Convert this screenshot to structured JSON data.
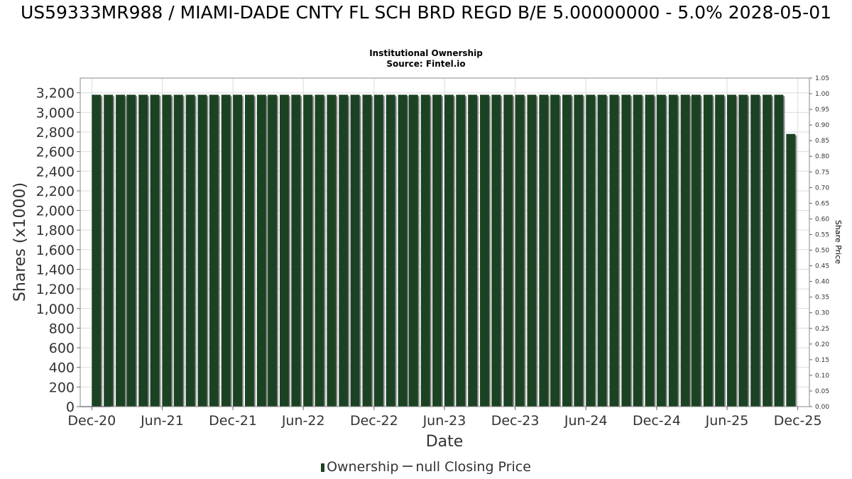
{
  "title": "US59333MR988 / MIAMI-DADE CNTY FL SCH BRD REGD B/E 5.00000000 - 5.0% 2028-05-01",
  "subtitle_lines": [
    "Institutional Ownership",
    "Source: Fintel.io"
  ],
  "colors": {
    "bar": "#1b4323",
    "bar_shadow": "#8a8a8a",
    "grid": "#dcdcdc",
    "frame": "#888888"
  },
  "chart_data": {
    "type": "bar",
    "title": "US59333MR988 / MIAMI-DADE CNTY FL SCH BRD REGD B/E 5.00000000 - 5.0% 2028-05-01",
    "xlabel": "Date",
    "ylabel": "Shares (x1000)",
    "y2label": "Share Price",
    "x_start": "2020-11-01",
    "x_end": "2025-12-31",
    "x_ticks": [
      "Dec-20",
      "Jun-21",
      "Dec-21",
      "Jun-22",
      "Dec-22",
      "Jun-23",
      "Dec-23",
      "Jun-24",
      "Dec-24",
      "Jun-25",
      "Dec-25"
    ],
    "x_tick_dates": [
      "2020-12-01",
      "2021-06-01",
      "2021-12-01",
      "2022-06-01",
      "2022-12-01",
      "2023-06-01",
      "2023-12-01",
      "2024-06-01",
      "2024-12-01",
      "2025-06-01",
      "2025-12-01"
    ],
    "ylim": [
      0,
      3350
    ],
    "y_ticks": [
      0,
      200,
      400,
      600,
      800,
      1000,
      1200,
      1400,
      1600,
      1800,
      2000,
      2200,
      2400,
      2600,
      2800,
      3000,
      3200
    ],
    "y_tick_labels": [
      "0",
      "200",
      "400",
      "600",
      "800",
      "1,000",
      "1,200",
      "1,400",
      "1,600",
      "1,800",
      "2,000",
      "2,200",
      "2,400",
      "2,600",
      "2,800",
      "3,000",
      "3,200"
    ],
    "y2lim": [
      0,
      1.05
    ],
    "y2_ticks": [
      "0.00",
      "0.05",
      "0.10",
      "0.15",
      "0.20",
      "0.25",
      "0.30",
      "0.35",
      "0.40",
      "0.45",
      "0.50",
      "0.55",
      "0.60",
      "0.65",
      "0.70",
      "0.75",
      "0.80",
      "0.85",
      "0.90",
      "0.95",
      "1.00",
      "1.05"
    ],
    "grid": true,
    "legend_position": "bottom",
    "series": [
      {
        "name": "Ownership",
        "type": "bar",
        "x": [
          "2020-12-01",
          "2021-01-01",
          "2021-02-01",
          "2021-03-01",
          "2021-04-01",
          "2021-05-01",
          "2021-06-01",
          "2021-07-01",
          "2021-08-01",
          "2021-09-01",
          "2021-10-01",
          "2021-11-01",
          "2021-12-01",
          "2022-01-01",
          "2022-02-01",
          "2022-03-01",
          "2022-04-01",
          "2022-05-01",
          "2022-06-01",
          "2022-07-01",
          "2022-08-01",
          "2022-09-01",
          "2022-10-01",
          "2022-11-01",
          "2022-12-01",
          "2023-01-01",
          "2023-02-01",
          "2023-03-01",
          "2023-04-01",
          "2023-05-01",
          "2023-06-01",
          "2023-07-01",
          "2023-08-01",
          "2023-09-01",
          "2023-10-01",
          "2023-11-01",
          "2023-12-01",
          "2024-01-01",
          "2024-02-01",
          "2024-03-01",
          "2024-04-01",
          "2024-05-01",
          "2024-06-01",
          "2024-07-01",
          "2024-08-01",
          "2024-09-01",
          "2024-10-01",
          "2024-11-01",
          "2024-12-01",
          "2025-01-01",
          "2025-02-01",
          "2025-03-01",
          "2025-04-01",
          "2025-05-01",
          "2025-06-01",
          "2025-07-01",
          "2025-08-01",
          "2025-09-01",
          "2025-10-01",
          "2025-11-01"
        ],
        "values": [
          3180,
          3180,
          3180,
          3180,
          3180,
          3180,
          3180,
          3180,
          3180,
          3180,
          3180,
          3180,
          3180,
          3180,
          3180,
          3180,
          3180,
          3180,
          3180,
          3180,
          3180,
          3180,
          3180,
          3180,
          3180,
          3180,
          3180,
          3180,
          3180,
          3180,
          3180,
          3180,
          3180,
          3180,
          3180,
          3180,
          3180,
          3180,
          3180,
          3180,
          3180,
          3180,
          3180,
          3180,
          3180,
          3180,
          3180,
          3180,
          3180,
          3180,
          3180,
          3180,
          3180,
          3180,
          3180,
          3180,
          3180,
          3180,
          3180,
          2780
        ]
      },
      {
        "name": "null Closing Price",
        "type": "line",
        "values": []
      }
    ]
  }
}
